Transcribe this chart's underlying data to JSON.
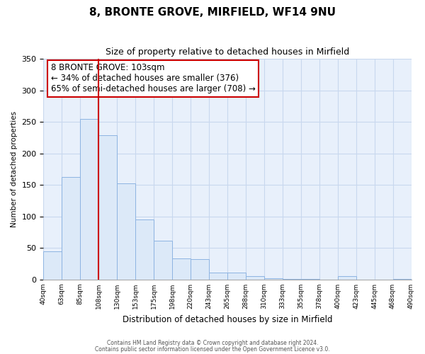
{
  "title": "8, BRONTE GROVE, MIRFIELD, WF14 9NU",
  "subtitle": "Size of property relative to detached houses in Mirfield",
  "xlabel": "Distribution of detached houses by size in Mirfield",
  "ylabel": "Number of detached properties",
  "bar_labels": [
    "40sqm",
    "63sqm",
    "85sqm",
    "108sqm",
    "130sqm",
    "153sqm",
    "175sqm",
    "198sqm",
    "220sqm",
    "243sqm",
    "265sqm",
    "288sqm",
    "310sqm",
    "333sqm",
    "355sqm",
    "378sqm",
    "400sqm",
    "423sqm",
    "445sqm",
    "468sqm",
    "490sqm"
  ],
  "bar_values": [
    45,
    163,
    255,
    229,
    152,
    95,
    62,
    34,
    32,
    11,
    11,
    5,
    2,
    1,
    1,
    0,
    5,
    0,
    0,
    1
  ],
  "bar_color": "#dce9f8",
  "bar_edge_color": "#8db4e2",
  "vline_x_index": 3,
  "vline_color": "#cc0000",
  "ylim": [
    0,
    350
  ],
  "yticks": [
    0,
    50,
    100,
    150,
    200,
    250,
    300,
    350
  ],
  "annotation_box_text": "8 BRONTE GROVE: 103sqm\n← 34% of detached houses are smaller (376)\n65% of semi-detached houses are larger (708) →",
  "footer_line1": "Contains HM Land Registry data © Crown copyright and database right 2024.",
  "footer_line2": "Contains public sector information licensed under the Open Government Licence v3.0.",
  "background_color": "#ffffff",
  "plot_bg_color": "#e8f0fb",
  "grid_color": "#c8d8ee"
}
